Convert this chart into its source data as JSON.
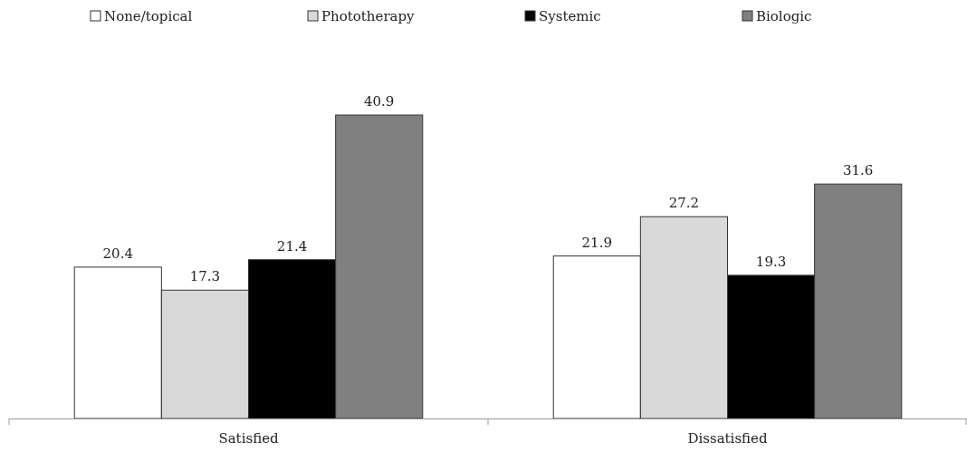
{
  "chart_data": {
    "type": "bar",
    "categories": [
      "Satisfied",
      "Dissatisfied"
    ],
    "series": [
      {
        "name": "None/topical",
        "color": "#ffffff",
        "values": [
          20.4,
          21.9
        ]
      },
      {
        "name": "Phototherapy",
        "color": "#d9d9d9",
        "values": [
          17.3,
          27.2
        ]
      },
      {
        "name": "Systemic",
        "color": "#000000",
        "values": [
          21.4,
          19.3
        ]
      },
      {
        "name": "Biologic",
        "color": "#808080",
        "values": [
          40.9,
          31.6
        ]
      }
    ],
    "data_labels": true,
    "legend": "top"
  }
}
